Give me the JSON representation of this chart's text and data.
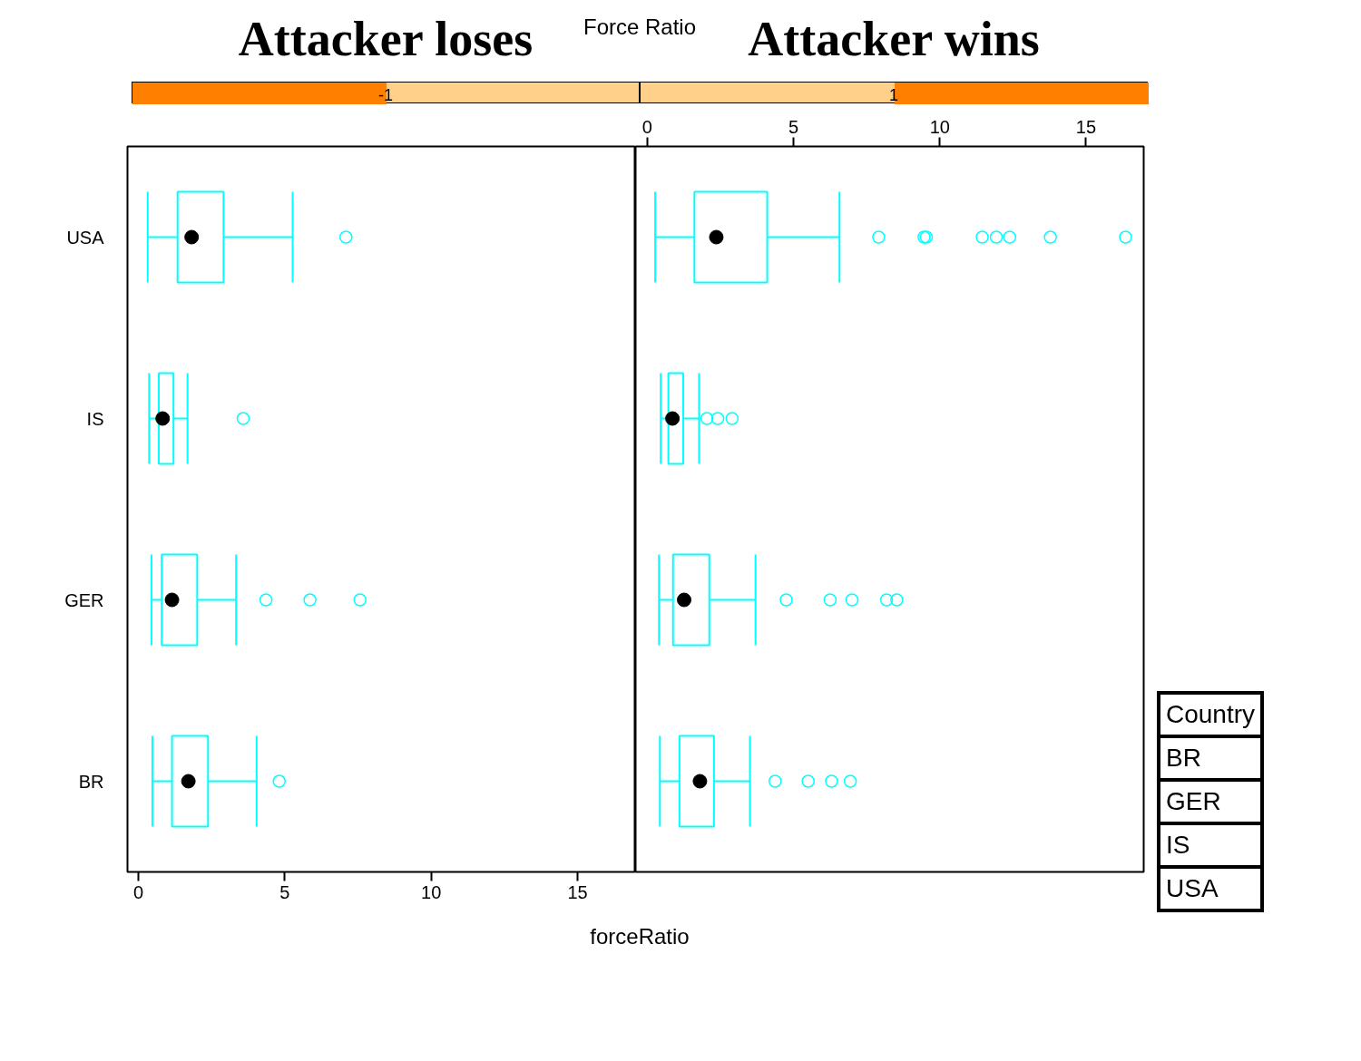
{
  "chart_data": [
    {
      "type": "box",
      "title": "Attacker loses",
      "subtitle": "-1",
      "orientation": "horizontal",
      "color": "#00ffff",
      "categories": [
        "USA",
        "IS",
        "GER",
        "BR"
      ],
      "boxes": [
        {
          "low": 0.32,
          "q1": 1.34,
          "median": 1.82,
          "q3": 2.91,
          "high": 5.27,
          "outliers": [
            7.09
          ]
        },
        {
          "low": 0.37,
          "q1": 0.7,
          "median": 0.83,
          "q3": 1.2,
          "high": 1.68,
          "outliers": [
            3.58
          ]
        },
        {
          "low": 0.45,
          "q1": 0.8,
          "median": 1.15,
          "q3": 2.01,
          "high": 3.34,
          "outliers": [
            4.36,
            5.86,
            7.57
          ]
        },
        {
          "low": 0.48,
          "q1": 1.15,
          "median": 1.71,
          "q3": 2.38,
          "high": 4.04,
          "outliers": [
            4.81
          ]
        }
      ],
      "xlim": [
        -0.37,
        16.98
      ],
      "xticks": [
        0,
        5,
        10,
        15
      ],
      "xlabel": "forceRatio",
      "annotations": [
        "Force Ratio"
      ]
    },
    {
      "type": "box",
      "title": "Attacker wins",
      "subtitle": "1",
      "orientation": "horizontal",
      "color": "#00ffff",
      "categories": [
        null,
        null,
        null,
        null
      ],
      "boxes": [
        {
          "low": 0.27,
          "q1": 1.61,
          "median": 2.36,
          "q3": 4.1,
          "high": 6.57,
          "outliers": [
            7.91,
            9.46,
            9.54,
            11.45,
            11.93,
            12.39,
            13.78,
            16.35
          ]
        },
        {
          "low": 0.46,
          "q1": 0.72,
          "median": 0.86,
          "q3": 1.23,
          "high": 1.77,
          "outliers": [
            2.04,
            2.41,
            2.9
          ]
        },
        {
          "low": 0.4,
          "q1": 0.88,
          "median": 1.26,
          "q3": 2.12,
          "high": 3.7,
          "outliers": [
            4.75,
            6.25,
            7.0,
            8.18,
            8.53
          ]
        },
        {
          "low": 0.43,
          "q1": 1.1,
          "median": 1.8,
          "q3": 2.28,
          "high": 3.51,
          "outliers": [
            4.37,
            5.5,
            6.3,
            6.94
          ]
        }
      ],
      "xlim": [
        -0.4,
        16.97
      ],
      "xticks": [
        0,
        5,
        10,
        15
      ],
      "tick_labels": "x",
      "annotations": [
        "Country",
        "BR",
        "GER",
        "IS",
        "USA"
      ]
    }
  ]
}
